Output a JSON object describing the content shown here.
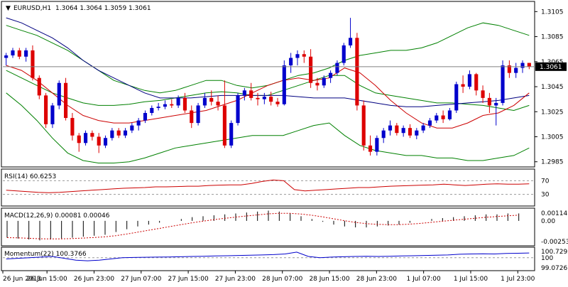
{
  "chart_data": {
    "type": "candlestick",
    "symbol_label": "EURUSD,H1",
    "ohlc_label": "1.3064 1.3064 1.3059 1.3061",
    "current_price": 1.3061,
    "current_price_label": "1.3061",
    "price_axis": {
      "ylim": [
        1.2982,
        1.3112
      ],
      "ticks": [
        1.3105,
        1.3085,
        1.3065,
        1.3045,
        1.3025,
        1.3005,
        1.2985
      ],
      "tick_labels": [
        "1.3105",
        "1.3085",
        "1.3065",
        "1.3045",
        "1.3025",
        "1.3005",
        "1.2985"
      ]
    },
    "time_labels": [
      "26 Jun 2013",
      "26 Jun 15:00",
      "26 Jun 23:00",
      "27 Jun 07:00",
      "27 Jun 15:00",
      "27 Jun 23:00",
      "28 Jun 07:00",
      "28 Jun 15:00",
      "28 Jun 23:00",
      "1 Jul 07:00",
      "1 Jul 15:00",
      "1 Jul 23:00"
    ],
    "time_label_index": [
      0,
      15,
      31,
      47,
      63,
      79,
      95,
      111,
      127,
      143,
      159,
      175
    ],
    "candles": [
      [
        1.3068,
        1.3072,
        1.3062,
        1.307
      ],
      [
        1.307,
        1.3076,
        1.3068,
        1.3074
      ],
      [
        1.3074,
        1.3076,
        1.3067,
        1.3069
      ],
      [
        1.3069,
        1.3076,
        1.3065,
        1.3074
      ],
      [
        1.3074,
        1.3078,
        1.305,
        1.3052
      ],
      [
        1.3052,
        1.3054,
        1.3035,
        1.3038
      ],
      [
        1.3038,
        1.304,
        1.3012,
        1.3015
      ],
      [
        1.3015,
        1.3032,
        1.3012,
        1.303
      ],
      [
        1.303,
        1.305,
        1.3027,
        1.3048
      ],
      [
        1.3048,
        1.3052,
        1.3018,
        1.302
      ],
      [
        1.302,
        1.3024,
        1.3002,
        1.3006
      ],
      [
        1.3006,
        1.3008,
        1.2993,
        1.3
      ],
      [
        1.3,
        1.301,
        1.2998,
        1.3008
      ],
      [
        1.3008,
        1.301,
        1.3002,
        1.3005
      ],
      [
        1.3005,
        1.3008,
        1.2992,
        1.2998
      ],
      [
        1.2998,
        1.3006,
        1.2996,
        1.3004
      ],
      [
        1.3004,
        1.3012,
        1.3002,
        1.301
      ],
      [
        1.301,
        1.3012,
        1.3004,
        1.3006
      ],
      [
        1.3006,
        1.3012,
        1.3004,
        1.301
      ],
      [
        1.301,
        1.3016,
        1.3008,
        1.3014
      ],
      [
        1.3014,
        1.302,
        1.301,
        1.3018
      ],
      [
        1.3018,
        1.3026,
        1.3016,
        1.3024
      ],
      [
        1.3024,
        1.303,
        1.3022,
        1.3028
      ],
      [
        1.3028,
        1.3032,
        1.3026,
        1.3029
      ],
      [
        1.3029,
        1.3034,
        1.3027,
        1.3031
      ],
      [
        1.3031,
        1.3035,
        1.3028,
        1.303
      ],
      [
        1.303,
        1.3038,
        1.3028,
        1.3036
      ],
      [
        1.3036,
        1.304,
        1.3024,
        1.3026
      ],
      [
        1.3026,
        1.303,
        1.3012,
        1.3016
      ],
      [
        1.3016,
        1.3032,
        1.3014,
        1.303
      ],
      [
        1.303,
        1.304,
        1.3028,
        1.3036
      ],
      [
        1.3036,
        1.3042,
        1.303,
        1.3033
      ],
      [
        1.3033,
        1.3038,
        1.3026,
        1.303
      ],
      [
        1.303,
        1.305,
        1.2996,
        1.2998
      ],
      [
        1.2998,
        1.3018,
        1.2996,
        1.3016
      ],
      [
        1.3016,
        1.304,
        1.3014,
        1.3038
      ],
      [
        1.3038,
        1.3044,
        1.3034,
        1.3042
      ],
      [
        1.3042,
        1.3048,
        1.3034,
        1.3036
      ],
      [
        1.3036,
        1.304,
        1.303,
        1.3035
      ],
      [
        1.3035,
        1.304,
        1.3031,
        1.3037
      ],
      [
        1.3037,
        1.3041,
        1.303,
        1.3033
      ],
      [
        1.3033,
        1.3036,
        1.3029,
        1.3031
      ],
      [
        1.3031,
        1.3066,
        1.303,
        1.3062
      ],
      [
        1.3062,
        1.3072,
        1.3056,
        1.3068
      ],
      [
        1.3068,
        1.3074,
        1.3062,
        1.3071
      ],
      [
        1.3071,
        1.3074,
        1.3064,
        1.3069
      ],
      [
        1.3069,
        1.3075,
        1.3044,
        1.3048
      ],
      [
        1.3048,
        1.3052,
        1.3042,
        1.3046
      ],
      [
        1.3046,
        1.3054,
        1.3044,
        1.3052
      ],
      [
        1.3052,
        1.3058,
        1.3048,
        1.3056
      ],
      [
        1.3056,
        1.3066,
        1.3054,
        1.3064
      ],
      [
        1.3064,
        1.308,
        1.3062,
        1.3078
      ],
      [
        1.3078,
        1.31,
        1.3076,
        1.3084
      ],
      [
        1.3084,
        1.3088,
        1.3026,
        1.303
      ],
      [
        1.303,
        1.3034,
        1.2994,
        1.2998
      ],
      [
        1.2998,
        1.3006,
        1.299,
        1.2993
      ],
      [
        1.2993,
        1.3006,
        1.299,
        1.3004
      ],
      [
        1.3004,
        1.3012,
        1.3,
        1.301
      ],
      [
        1.301,
        1.3018,
        1.3006,
        1.3014
      ],
      [
        1.3014,
        1.3016,
        1.3006,
        1.3008
      ],
      [
        1.3008,
        1.3014,
        1.3005,
        1.3012
      ],
      [
        1.3012,
        1.3015,
        1.3004,
        1.3006
      ],
      [
        1.3006,
        1.3012,
        1.3003,
        1.301
      ],
      [
        1.301,
        1.3016,
        1.3008,
        1.3014
      ],
      [
        1.3014,
        1.302,
        1.3012,
        1.3018
      ],
      [
        1.3018,
        1.3024,
        1.3016,
        1.3022
      ],
      [
        1.3022,
        1.3026,
        1.3016,
        1.3019
      ],
      [
        1.3019,
        1.3028,
        1.3018,
        1.3026
      ],
      [
        1.3026,
        1.3049,
        1.3024,
        1.3047
      ],
      [
        1.3047,
        1.3054,
        1.304,
        1.3045
      ],
      [
        1.3045,
        1.3058,
        1.3043,
        1.3055
      ],
      [
        1.3055,
        1.3056,
        1.3038,
        1.3042
      ],
      [
        1.3042,
        1.3046,
        1.3032,
        1.3036
      ],
      [
        1.3036,
        1.304,
        1.3024,
        1.303
      ],
      [
        1.303,
        1.3036,
        1.3014,
        1.3032
      ],
      [
        1.3032,
        1.3066,
        1.303,
        1.3062
      ],
      [
        1.3062,
        1.3066,
        1.3052,
        1.3056
      ],
      [
        1.3056,
        1.3064,
        1.3052,
        1.306
      ],
      [
        1.306,
        1.3066,
        1.3056,
        1.3064
      ],
      [
        1.3064,
        1.3064,
        1.3059,
        1.3061
      ]
    ],
    "indicators": {
      "bollinger_upper": [
        1.3094,
        1.309,
        1.3086,
        1.308,
        1.3074,
        1.3066,
        1.3058,
        1.305,
        1.3046,
        1.3042,
        1.304,
        1.3042,
        1.3046,
        1.305,
        1.305,
        1.3046,
        1.3044,
        1.3046,
        1.305,
        1.3054,
        1.3056,
        1.306,
        1.3066,
        1.307,
        1.3072,
        1.3074,
        1.3074,
        1.3076,
        1.308,
        1.3086,
        1.3092,
        1.3096,
        1.3094,
        1.309,
        1.3086
      ],
      "bollinger_middle": [
        1.3058,
        1.3052,
        1.3046,
        1.304,
        1.3036,
        1.3032,
        1.303,
        1.303,
        1.3031,
        1.3033,
        1.3034,
        1.3036,
        1.3038,
        1.304,
        1.3041,
        1.304,
        1.3038,
        1.3038,
        1.3042,
        1.3046,
        1.305,
        1.3054,
        1.3054,
        1.3046,
        1.304,
        1.3038,
        1.3036,
        1.3034,
        1.3032,
        1.3032,
        1.3031,
        1.303,
        1.3028,
        1.3026,
        1.303
      ],
      "bollinger_lower": [
        1.304,
        1.303,
        1.3018,
        1.3004,
        1.2992,
        1.2986,
        1.2984,
        1.2984,
        1.2985,
        1.2988,
        1.2992,
        1.2996,
        1.2998,
        1.3,
        1.3002,
        1.3004,
        1.3006,
        1.3006,
        1.3006,
        1.301,
        1.3014,
        1.3016,
        1.3006,
        1.2998,
        1.2994,
        1.2992,
        1.299,
        1.299,
        1.2988,
        1.2988,
        1.2986,
        1.2986,
        1.2988,
        1.299,
        1.2996
      ],
      "ma_red": [
        1.3062,
        1.3058,
        1.305,
        1.304,
        1.303,
        1.3022,
        1.3018,
        1.3016,
        1.3016,
        1.3018,
        1.302,
        1.3022,
        1.3024,
        1.3026,
        1.303,
        1.3034,
        1.304,
        1.3046,
        1.305,
        1.3052,
        1.305,
        1.3052,
        1.306,
        1.3056,
        1.3046,
        1.3034,
        1.3024,
        1.3016,
        1.3012,
        1.3012,
        1.3016,
        1.3022,
        1.3024,
        1.303,
        1.304
      ],
      "ma_blue": [
        1.31,
        1.3096,
        1.309,
        1.3084,
        1.3076,
        1.3066,
        1.3058,
        1.3052,
        1.3046,
        1.304,
        1.3036,
        1.3036,
        1.3036,
        1.3037,
        1.3038,
        1.3038,
        1.3038,
        1.3038,
        1.3038,
        1.3037,
        1.3036,
        1.3036,
        1.3036,
        1.3034,
        1.3032,
        1.303,
        1.3029,
        1.3029,
        1.303,
        1.3031,
        1.3032,
        1.3033,
        1.3034,
        1.3036,
        1.3038
      ]
    },
    "rsi": {
      "label": "RSI(14) 60.6253",
      "ylim": [
        0,
        100
      ],
      "levels": [
        70,
        30
      ],
      "level_labels": [
        "70",
        "30"
      ],
      "values": [
        42,
        40,
        38,
        36,
        35,
        36,
        38,
        40,
        42,
        44,
        46,
        48,
        49,
        50,
        52,
        52,
        53,
        54,
        54,
        56,
        57,
        58,
        58,
        62,
        68,
        72,
        70,
        44,
        40,
        42,
        44,
        46,
        48,
        50,
        50,
        52,
        54,
        55,
        56,
        57,
        58,
        60,
        58,
        56,
        58,
        60,
        61,
        60,
        60,
        61
      ]
    },
    "macd": {
      "label": "MACD(12,26,9) 0.00081 0.00046",
      "ylim": [
        -0.00253,
        0.00114
      ],
      "tick_labels": [
        "0.00114",
        "0.00",
        "-0.00253"
      ],
      "histogram": [
        -0.0018,
        -0.0019,
        -0.002,
        -0.0021,
        -0.002,
        -0.0019,
        -0.0018,
        -0.0017,
        -0.0016,
        -0.0015,
        -0.0012,
        -0.0009,
        -0.0006,
        -0.0004,
        -0.0002,
        0.0,
        0.0002,
        0.0004,
        0.0005,
        0.0006,
        0.0007,
        0.0008,
        0.0009,
        0.001,
        0.0011,
        0.001,
        0.0008,
        0.0005,
        0.0002,
        -0.0001,
        -0.0004,
        -0.0006,
        -0.0007,
        -0.0007,
        -0.0006,
        -0.0005,
        -0.0004,
        -0.0002,
        0.0,
        0.0002,
        0.0003,
        0.0004,
        0.0005,
        0.0006,
        0.0007,
        0.0007,
        0.0008,
        0.0008
      ]
    },
    "momentum": {
      "label": "Momentum(22) 100.3766",
      "ylim": [
        99.0726,
        100.7292
      ],
      "tick_labels": [
        "100.7292",
        "100",
        "99.0726"
      ],
      "values": [
        99.9,
        99.95,
        100.0,
        100.05,
        100.1,
        99.95,
        99.8,
        99.75,
        99.8,
        99.9,
        100.0,
        100.02,
        100.04,
        100.05,
        100.06,
        100.08,
        100.1,
        100.12,
        100.14,
        100.16,
        100.18,
        100.2,
        100.22,
        100.25,
        100.3,
        100.45,
        100.1,
        100.0,
        100.05,
        100.08,
        100.1,
        100.12,
        100.1,
        100.12,
        100.14,
        100.16,
        100.18,
        100.2,
        100.22,
        100.28,
        100.3,
        100.32,
        100.3,
        100.34,
        100.36,
        100.38
      ]
    }
  }
}
